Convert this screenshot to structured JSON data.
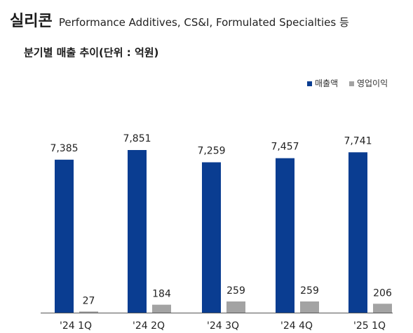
{
  "header": {
    "title": "실리콘",
    "subtitle": "Performance Additives, CS&I, Formulated Specialties 등"
  },
  "chart_data": {
    "type": "bar",
    "title": "분기별 매출 추이(단위 : 억원)",
    "categories": [
      "'24 1Q",
      "'24 2Q",
      "'24 3Q",
      "'24 4Q",
      "'25 1Q"
    ],
    "series": [
      {
        "name": "매출액",
        "values": [
          7385,
          7851,
          7259,
          7457,
          7741
        ],
        "color": "#0a3d91"
      },
      {
        "name": "영업이익",
        "values": [
          27,
          184,
          259,
          259,
          206
        ],
        "color": "#a3a3a3"
      }
    ],
    "legend_position": "top-right",
    "grid": false
  }
}
